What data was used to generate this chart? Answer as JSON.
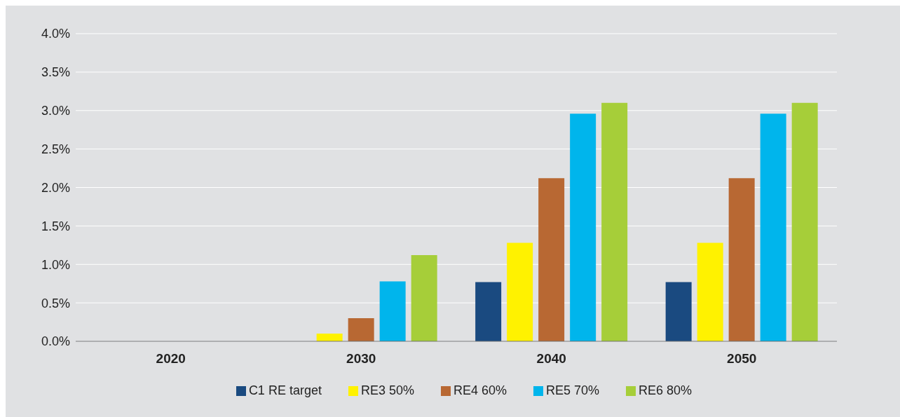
{
  "chart_data": {
    "type": "bar",
    "categories": [
      "2020",
      "2030",
      "2040",
      "2050"
    ],
    "series": [
      {
        "name": "C1 RE target",
        "color": "#1a4a80",
        "values": [
          0,
          0,
          0.77,
          0.77
        ]
      },
      {
        "name": "RE3 50%",
        "color": "#fff200",
        "values": [
          0,
          0.1,
          1.28,
          1.28
        ]
      },
      {
        "name": "RE4 60%",
        "color": "#b86833",
        "values": [
          0,
          0.3,
          2.12,
          2.12
        ]
      },
      {
        "name": "RE5 70%",
        "color": "#00b5ec",
        "values": [
          0,
          0.78,
          2.96,
          2.96
        ]
      },
      {
        "name": "RE6 80%",
        "color": "#a6ce39",
        "values": [
          0,
          1.12,
          3.1,
          3.1
        ]
      }
    ],
    "ylim": [
      0,
      4
    ],
    "yticks": [
      {
        "value": 0,
        "label": "0.0%"
      },
      {
        "value": 0.5,
        "label": "0.5%"
      },
      {
        "value": 1,
        "label": "1.0%"
      },
      {
        "value": 1.5,
        "label": "1.5%"
      },
      {
        "value": 2,
        "label": "2.0%"
      },
      {
        "value": 2.5,
        "label": "2.5%"
      },
      {
        "value": 3,
        "label": "3.0%"
      },
      {
        "value": 3.5,
        "label": "3.5%"
      },
      {
        "value": 4,
        "label": "4.0%"
      }
    ],
    "grid": "y",
    "legend": "bottom"
  }
}
